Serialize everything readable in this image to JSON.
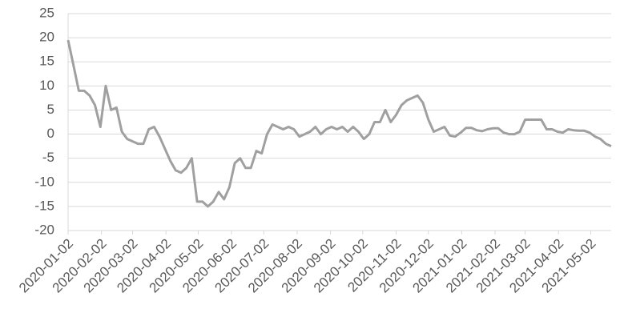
{
  "chart_data": {
    "type": "line",
    "x": [
      "2020-01-02",
      "2020-01-07",
      "2020-01-12",
      "2020-01-17",
      "2020-01-22",
      "2020-01-27",
      "2020-02-01",
      "2020-02-06",
      "2020-02-11",
      "2020-02-16",
      "2020-02-21",
      "2020-02-26",
      "2020-03-02",
      "2020-03-07",
      "2020-03-12",
      "2020-03-17",
      "2020-03-22",
      "2020-03-27",
      "2020-04-01",
      "2020-04-06",
      "2020-04-11",
      "2020-04-16",
      "2020-04-21",
      "2020-04-26",
      "2020-05-01",
      "2020-05-06",
      "2020-05-11",
      "2020-05-16",
      "2020-05-21",
      "2020-05-26",
      "2020-05-31",
      "2020-06-05",
      "2020-06-10",
      "2020-06-15",
      "2020-06-20",
      "2020-06-25",
      "2020-06-30",
      "2020-07-05",
      "2020-07-10",
      "2020-07-15",
      "2020-07-20",
      "2020-07-25",
      "2020-07-30",
      "2020-08-04",
      "2020-08-09",
      "2020-08-14",
      "2020-08-19",
      "2020-08-24",
      "2020-08-29",
      "2020-09-03",
      "2020-09-08",
      "2020-09-13",
      "2020-09-18",
      "2020-09-23",
      "2020-09-28",
      "2020-10-03",
      "2020-10-08",
      "2020-10-13",
      "2020-10-18",
      "2020-10-23",
      "2020-10-28",
      "2020-11-02",
      "2020-11-07",
      "2020-11-12",
      "2020-11-17",
      "2020-11-22",
      "2020-11-27",
      "2020-12-02",
      "2020-12-07",
      "2020-12-12",
      "2020-12-17",
      "2020-12-22",
      "2020-12-27",
      "2021-01-01",
      "2021-01-06",
      "2021-01-11",
      "2021-01-16",
      "2021-01-21",
      "2021-01-26",
      "2021-01-31",
      "2021-02-05",
      "2021-02-10",
      "2021-02-15",
      "2021-02-20",
      "2021-02-25",
      "2021-03-02",
      "2021-03-07",
      "2021-03-12",
      "2021-03-17",
      "2021-03-22",
      "2021-03-27",
      "2021-04-01",
      "2021-04-06",
      "2021-04-11",
      "2021-04-16",
      "2021-04-21",
      "2021-04-26",
      "2021-05-01",
      "2021-05-06",
      "2021-05-11",
      "2021-05-16",
      "2021-05-21"
    ],
    "series": [
      {
        "color": "#a0a0a0",
        "values": [
          19.5,
          14.3,
          9,
          9,
          8,
          6,
          1.5,
          10,
          5,
          5.5,
          0.5,
          -1,
          -1.5,
          -2,
          -2,
          1,
          1.5,
          -0.5,
          -3,
          -5.5,
          -7.5,
          -8,
          -7,
          -5,
          -14,
          -14,
          -15,
          -14,
          -12,
          -13.5,
          -11,
          -6,
          -5,
          -7,
          -7,
          -3.5,
          -4,
          0,
          2,
          1.5,
          1,
          1.5,
          1,
          -0.5,
          0,
          0.5,
          1.5,
          0,
          1,
          1.5,
          1,
          1.5,
          0.5,
          1.5,
          0.5,
          -1,
          0,
          2.5,
          2.5,
          5,
          2.5,
          4,
          6,
          7,
          7.5,
          8,
          6.5,
          3,
          0.5,
          1,
          1.5,
          -0.3,
          -0.5,
          0.3,
          1.3,
          1.3,
          0.8,
          0.6,
          1,
          1.2,
          1.2,
          0.3,
          0,
          0,
          0.5,
          3,
          3,
          3,
          3,
          1,
          1,
          0.5,
          0.3,
          1,
          0.8,
          0.7,
          0.7,
          0.3,
          -0.5,
          -1,
          -2,
          -2.5
        ]
      }
    ],
    "xlim": [
      "2020-01-02",
      "2021-05-21"
    ],
    "xticks": [
      "2020-01-02",
      "2020-02-02",
      "2020-03-02",
      "2020-04-02",
      "2020-05-02",
      "2020-06-02",
      "2020-07-02",
      "2020-08-02",
      "2020-09-02",
      "2020-10-02",
      "2020-11-02",
      "2020-12-02",
      "2021-01-02",
      "2021-02-02",
      "2021-03-02",
      "2021-04-02",
      "2021-05-02"
    ],
    "ylim": [
      -20,
      25
    ],
    "yticks": [
      -20,
      -15,
      -10,
      -5,
      0,
      5,
      10,
      15,
      20,
      25
    ],
    "grid": true
  }
}
